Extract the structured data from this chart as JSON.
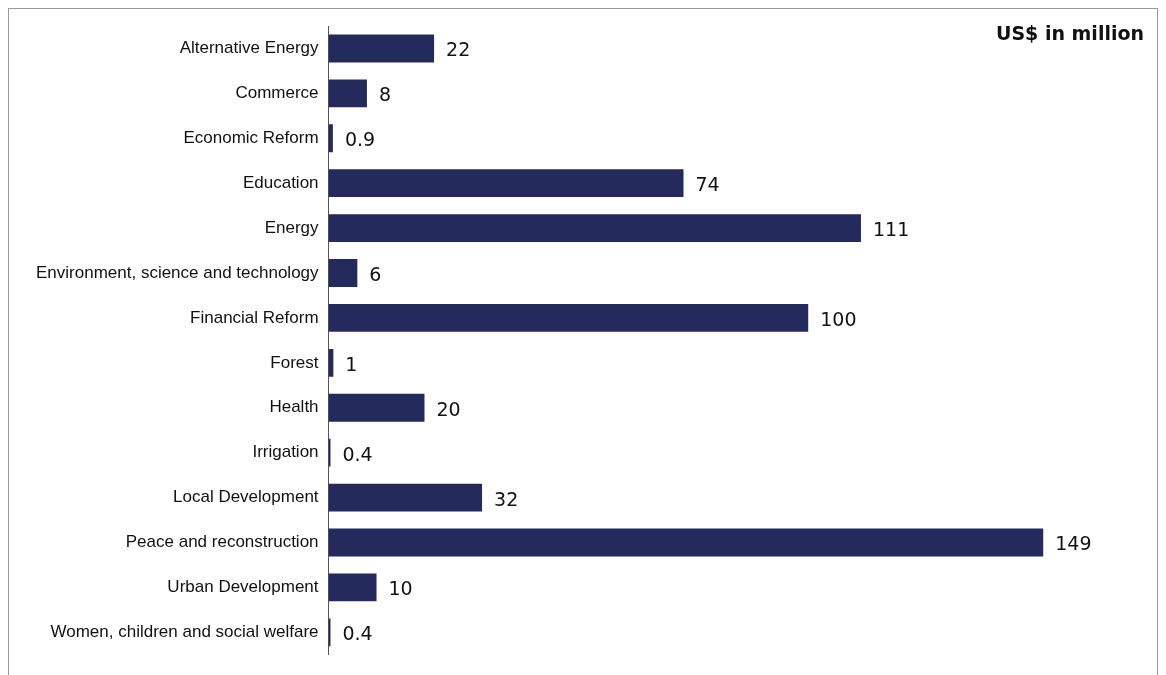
{
  "chart_data": {
    "type": "bar",
    "orientation": "horizontal",
    "title": "US$ in million",
    "categories": [
      "Alternative Energy",
      "Commerce",
      "Economic Reform",
      "Education",
      "Energy",
      "Environment, science and technology",
      "Financial Reform",
      "Forest",
      "Health",
      "Irrigation",
      "Local Development",
      "Peace and reconstruction",
      "Urban Development",
      "Women, children and social welfare"
    ],
    "values": [
      22,
      8,
      0.9,
      74,
      111,
      6,
      100,
      1,
      20,
      0.4,
      32,
      149,
      10,
      0.4
    ],
    "color": "#252a5c",
    "data_labels": true,
    "grid": false,
    "legend": false
  }
}
